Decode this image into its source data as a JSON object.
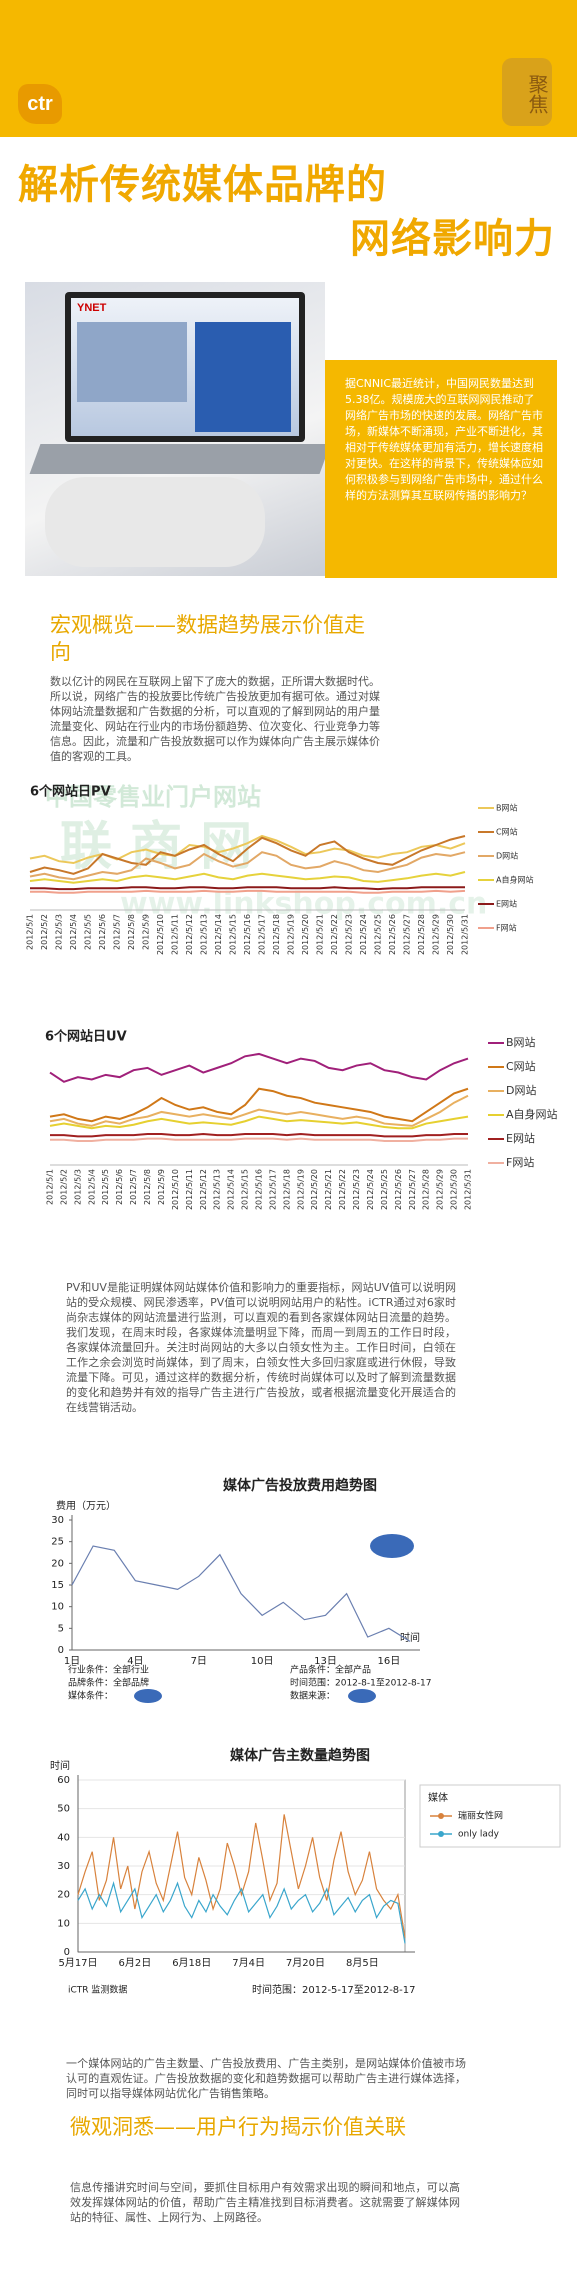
{
  "header": {
    "logo": "ctr",
    "seal": "聚焦",
    "title_line1": "解析传统媒体品牌的",
    "title_line2": "网络影响力"
  },
  "photo": {
    "screen_brand": "YNET"
  },
  "intro": "据CNNIC最近统计，中国网民数量达到5.38亿。规模庞大的互联网网民推动了网络广告市场的快速的发展。网络广告市场，新媒体不断涌现，产业不断进化，其相对于传统媒体更加有活力，增长速度相对更快。在这样的背景下，传统媒体应如何积极参与到网络广告市场中，通过什么样的方法测算其互联网传播的影响力？",
  "section1": {
    "heading": "宏观概览——数据趋势展示价值走向",
    "paragraph": "数以亿计的网民在互联网上留下了庞大的数据，正所谓大数据时代。所以说，网络广告的投放要比传统广告投放更加有据可依。通过对媒体网站流量数据和广告数据的分析，可以直观的了解到网站的用户量流量变化、网站在行业内的市场份额趋势、位次变化、行业竞争力等信息。因此，流量和广告投放数据可以作为媒体向广告主展示媒体价值的客观的工具。"
  },
  "paragraph2": "PV和UV是能证明媒体网站媒体价值和影响力的重要指标，网站UV值可以说明网站的受众规模、网民渗透率，PV值可以说明网站用户的粘性。iCTR通过对6家时尚杂志媒体的网站流量进行监测，可以直观的看到各家媒体网站日流量的趋势。我们发现，在周末时段，各家媒体流量明显下降，而周一到周五的工作日时段，各家媒体流量回升。关注时尚网站的大多以白领女性为主。工作日时间，白领在工作之余会浏览时尚媒体，到了周末，白领女性大多回归家庭或进行休假，导致流量下降。可见，通过这样的数据分析，传统时尚媒体可以及时了解到流量数据的变化和趋势并有效的指导广告主进行广告投放，或者根据流量变化开展适合的在线营销活动。",
  "paragraph3": "一个媒体网站的广告主数量、广告投放费用、广告主类别，是网站媒体价值被市场认可的直观佐证。广告投放数据的变化和趋势数据可以帮助广告主进行媒体选择，同时可以指导媒体网站优化广告销售策略。",
  "section2": {
    "heading": "微观洞悉——用户行为揭示价值关联",
    "paragraph": "信息传播讲究时间与空间，要抓住目标用户有效需求出现的瞬间和地点，可以高效发挥媒体网站的价值，帮助广告主精准找到目标消费者。这就需要了解媒体网站的特征、属性、上网行为、上网路径。"
  },
  "chart_data": [
    {
      "type": "line",
      "title": "6个网站日PV",
      "ylim": [
        0,
        100
      ],
      "watermark": [
        "中国零售业门户网站",
        "联 商 网",
        "www.linkshop.com.cn"
      ],
      "categories": [
        "2012/5/1",
        "2012/5/2",
        "2012/5/3",
        "2012/5/4",
        "2012/5/5",
        "2012/5/6",
        "2012/5/7",
        "2012/5/8",
        "2012/5/9",
        "2012/5/10",
        "2012/5/11",
        "2012/5/12",
        "2012/5/13",
        "2012/5/14",
        "2012/5/15",
        "2012/5/16",
        "2012/5/17",
        "2012/5/18",
        "2012/5/19",
        "2012/5/20",
        "2012/5/21",
        "2012/5/22",
        "2012/5/23",
        "2012/5/24",
        "2012/5/25",
        "2012/5/26",
        "2012/5/27",
        "2012/5/28",
        "2012/5/29",
        "2012/5/30",
        "2012/5/31"
      ],
      "series": [
        {
          "name": "B网站",
          "color": "#ecc85a",
          "values": [
            55,
            58,
            52,
            50,
            56,
            60,
            54,
            62,
            65,
            60,
            58,
            70,
            68,
            62,
            66,
            72,
            80,
            75,
            68,
            60,
            62,
            66,
            64,
            58,
            56,
            60,
            62,
            68,
            70,
            66,
            72
          ]
        },
        {
          "name": "C网站",
          "color": "#c8782a",
          "values": [
            40,
            45,
            42,
            38,
            44,
            60,
            55,
            50,
            48,
            62,
            58,
            65,
            70,
            60,
            52,
            66,
            78,
            72,
            64,
            58,
            70,
            74,
            62,
            55,
            50,
            48,
            56,
            64,
            70,
            76,
            80
          ]
        },
        {
          "name": "D网站",
          "color": "#e2a866",
          "values": [
            35,
            38,
            34,
            32,
            36,
            40,
            38,
            42,
            55,
            50,
            44,
            48,
            60,
            52,
            46,
            50,
            62,
            58,
            48,
            44,
            46,
            52,
            48,
            42,
            40,
            44,
            48,
            56,
            60,
            58,
            62
          ]
        },
        {
          "name": "A自身网站",
          "color": "#e6d23c",
          "values": [
            30,
            32,
            30,
            28,
            30,
            32,
            30,
            34,
            36,
            34,
            32,
            35,
            38,
            34,
            32,
            36,
            38,
            36,
            34,
            32,
            33,
            35,
            34,
            30,
            29,
            31,
            33,
            36,
            38,
            36,
            40
          ]
        },
        {
          "name": "E网站",
          "color": "#8b1a1a",
          "values": [
            22,
            22,
            21,
            21,
            22,
            22,
            22,
            23,
            23,
            22,
            22,
            23,
            23,
            22,
            22,
            23,
            23,
            23,
            22,
            22,
            22,
            23,
            22,
            22,
            21,
            22,
            22,
            23,
            23,
            23,
            23
          ]
        },
        {
          "name": "F网站",
          "color": "#f0a08c",
          "values": [
            18,
            18,
            17,
            17,
            18,
            18,
            18,
            18,
            19,
            18,
            18,
            18,
            19,
            18,
            18,
            19,
            19,
            18,
            18,
            18,
            18,
            18,
            18,
            17,
            17,
            18,
            18,
            18,
            19,
            18,
            19
          ]
        }
      ]
    },
    {
      "type": "line",
      "title": "6个网站日UV",
      "ylim": [
        0,
        100
      ],
      "categories": [
        "2012/5/1",
        "2012/5/2",
        "2012/5/3",
        "2012/5/4",
        "2012/5/5",
        "2012/5/6",
        "2012/5/7",
        "2012/5/8",
        "2012/5/9",
        "2012/5/10",
        "2012/5/11",
        "2012/5/12",
        "2012/5/13",
        "2012/5/14",
        "2012/5/15",
        "2012/5/16",
        "2012/5/17",
        "2012/5/18",
        "2012/5/19",
        "2012/5/20",
        "2012/5/21",
        "2012/5/22",
        "2012/5/23",
        "2012/5/24",
        "2012/5/25",
        "2012/5/26",
        "2012/5/27",
        "2012/5/28",
        "2012/5/29",
        "2012/5/30",
        "2012/5/31"
      ],
      "series": [
        {
          "name": "B网站",
          "color": "#a0207a",
          "values": [
            78,
            70,
            74,
            72,
            76,
            74,
            80,
            82,
            76,
            80,
            84,
            78,
            82,
            86,
            92,
            94,
            90,
            86,
            90,
            88,
            82,
            80,
            84,
            86,
            80,
            78,
            74,
            72,
            80,
            86,
            90
          ]
        },
        {
          "name": "C网站",
          "color": "#d07818",
          "values": [
            40,
            42,
            38,
            36,
            40,
            38,
            42,
            48,
            56,
            50,
            46,
            48,
            44,
            42,
            50,
            64,
            62,
            58,
            56,
            52,
            50,
            48,
            46,
            44,
            40,
            38,
            36,
            44,
            52,
            60,
            64
          ]
        },
        {
          "name": "D网站",
          "color": "#e8b060",
          "values": [
            36,
            38,
            34,
            32,
            36,
            34,
            38,
            40,
            44,
            42,
            40,
            42,
            40,
            38,
            42,
            46,
            44,
            42,
            44,
            42,
            40,
            38,
            40,
            38,
            34,
            33,
            32,
            38,
            44,
            52,
            58
          ]
        },
        {
          "name": "A自身网站",
          "color": "#e6d030",
          "values": [
            32,
            34,
            32,
            30,
            32,
            31,
            33,
            36,
            38,
            36,
            34,
            35,
            34,
            33,
            36,
            40,
            38,
            36,
            37,
            36,
            35,
            34,
            35,
            33,
            31,
            30,
            30,
            34,
            36,
            38,
            40
          ]
        },
        {
          "name": "E网站",
          "color": "#a02020",
          "values": [
            24,
            24,
            23,
            23,
            24,
            24,
            24,
            25,
            25,
            24,
            24,
            25,
            24,
            24,
            25,
            25,
            25,
            24,
            25,
            24,
            24,
            24,
            24,
            24,
            23,
            23,
            23,
            24,
            24,
            25,
            25
          ]
        },
        {
          "name": "F网站",
          "color": "#f0b0a0",
          "values": [
            20,
            20,
            19,
            19,
            20,
            20,
            20,
            21,
            21,
            20,
            20,
            20,
            20,
            20,
            21,
            21,
            21,
            20,
            21,
            20,
            20,
            20,
            20,
            20,
            19,
            19,
            19,
            20,
            20,
            21,
            21
          ]
        }
      ]
    },
    {
      "type": "line",
      "title": "媒体广告投放费用趋势图",
      "ylabel": "费用（万元）",
      "xlabel": "时间",
      "categories": [
        "1日",
        null,
        null,
        "4日",
        null,
        null,
        "7日",
        null,
        null,
        "10日",
        null,
        null,
        "13日",
        null,
        null,
        "16日",
        null
      ],
      "values": [
        15,
        24,
        23,
        16,
        15,
        14,
        17,
        22,
        13,
        8,
        11,
        7,
        8,
        13,
        3,
        5,
        2
      ],
      "color": "#6a7fb0",
      "ylim": [
        0,
        30
      ],
      "yticks": [
        0,
        5,
        10,
        15,
        20,
        25,
        30
      ],
      "footer": [
        "行业条件：全部行业",
        "品牌条件：全部品牌",
        "媒体条件：",
        "产品条件：全部产品",
        "时间范围：2012-8-1至2012-8-17",
        "数据来源："
      ]
    },
    {
      "type": "line",
      "title": "媒体广告主数量趋势图",
      "ylabel": "时间",
      "legend_title": "媒体",
      "grid": true,
      "categories": [
        "5月17日",
        null,
        null,
        null,
        null,
        null,
        null,
        null,
        "6月2日",
        null,
        null,
        null,
        null,
        null,
        null,
        null,
        "6月18日",
        null,
        null,
        null,
        null,
        null,
        null,
        null,
        "7月4日",
        null,
        null,
        null,
        null,
        null,
        null,
        null,
        "7月20日",
        null,
        null,
        null,
        null,
        null,
        null,
        null,
        "8月5日",
        null,
        null,
        null,
        null,
        null,
        null
      ],
      "ylim": [
        0,
        60
      ],
      "yticks": [
        0,
        10,
        20,
        30,
        40,
        50,
        60
      ],
      "series": [
        {
          "name": "瑞丽女性网",
          "color": "#d8823c",
          "values": [
            20,
            28,
            35,
            18,
            25,
            40,
            22,
            30,
            15,
            28,
            35,
            24,
            18,
            30,
            42,
            26,
            20,
            33,
            25,
            15,
            22,
            38,
            30,
            20,
            28,
            45,
            32,
            18,
            24,
            48,
            35,
            22,
            30,
            40,
            26,
            18,
            32,
            42,
            28,
            20,
            25,
            35,
            22,
            18,
            15,
            20,
            5
          ]
        },
        {
          "name": "only lady",
          "color": "#3aa6cc",
          "values": [
            18,
            22,
            15,
            20,
            16,
            24,
            14,
            18,
            22,
            12,
            16,
            20,
            14,
            18,
            24,
            16,
            12,
            18,
            14,
            20,
            16,
            13,
            18,
            22,
            14,
            17,
            20,
            12,
            16,
            22,
            15,
            18,
            20,
            14,
            17,
            22,
            13,
            16,
            19,
            14,
            18,
            20,
            12,
            16,
            18,
            17,
            3
          ]
        }
      ],
      "source": "iCTR 监测数据",
      "time_range": "时间范围：2012-5-17至2012-8-17"
    }
  ]
}
